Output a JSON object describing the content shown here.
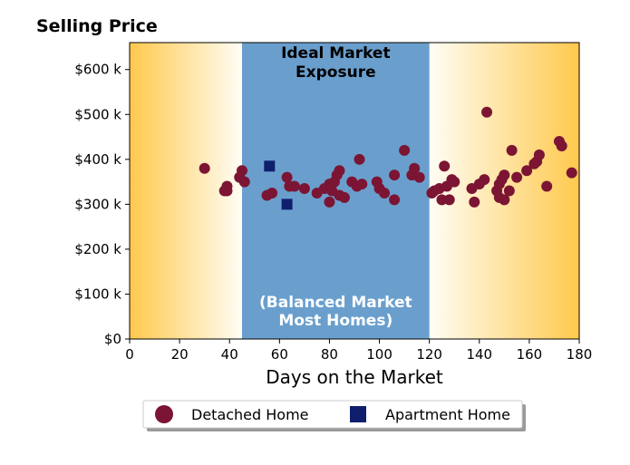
{
  "chart_data": {
    "type": "scatter",
    "title": "Selling Price",
    "xlabel": "Days on the Market",
    "ylabel": "",
    "xlim": [
      0,
      180
    ],
    "ylim": [
      0,
      660000
    ],
    "x_ticks": [
      0,
      20,
      40,
      60,
      80,
      100,
      120,
      140,
      160,
      180
    ],
    "x_tick_labels": [
      "0",
      "20",
      "40",
      "60",
      "80",
      "100",
      "120",
      "140",
      "160",
      "180"
    ],
    "y_ticks": [
      0,
      100000,
      200000,
      300000,
      400000,
      500000,
      600000
    ],
    "y_tick_labels": [
      "$0",
      "$100 k",
      "$200 k",
      "$300 k",
      "$400 k",
      "$500 k",
      "$600 k"
    ],
    "grid": false,
    "legend_position": "bottom-center",
    "background_gradient": {
      "edge_color": "#ffc94d",
      "center_color": "#fffdf5",
      "left_range": [
        0,
        45
      ],
      "right_range": [
        120,
        180
      ]
    },
    "zone": {
      "x_range": [
        45,
        120
      ],
      "color": "#6a9fcd",
      "title_line1": "Ideal Market",
      "title_line2": "Exposure",
      "subtitle_line1": "(Balanced Market",
      "subtitle_line2": "Most Homes)"
    },
    "series": [
      {
        "name": "Detached Home",
        "marker": "circle",
        "color": "#7b1533",
        "points": [
          [
            30,
            380000
          ],
          [
            38,
            330000
          ],
          [
            39,
            340000
          ],
          [
            39,
            330000
          ],
          [
            44,
            360000
          ],
          [
            45,
            375000
          ],
          [
            46,
            350000
          ],
          [
            55,
            320000
          ],
          [
            57,
            325000
          ],
          [
            63,
            360000
          ],
          [
            64,
            340000
          ],
          [
            66,
            340000
          ],
          [
            70,
            335000
          ],
          [
            75,
            325000
          ],
          [
            78,
            335000
          ],
          [
            80,
            345000
          ],
          [
            80,
            305000
          ],
          [
            81,
            330000
          ],
          [
            82,
            350000
          ],
          [
            83,
            365000
          ],
          [
            84,
            375000
          ],
          [
            84,
            320000
          ],
          [
            86,
            315000
          ],
          [
            89,
            350000
          ],
          [
            91,
            340000
          ],
          [
            92,
            400000
          ],
          [
            93,
            345000
          ],
          [
            99,
            350000
          ],
          [
            100,
            335000
          ],
          [
            102,
            325000
          ],
          [
            106,
            365000
          ],
          [
            106,
            310000
          ],
          [
            110,
            420000
          ],
          [
            113,
            365000
          ],
          [
            114,
            380000
          ],
          [
            116,
            360000
          ],
          [
            121,
            325000
          ],
          [
            122,
            330000
          ],
          [
            124,
            335000
          ],
          [
            125,
            310000
          ],
          [
            126,
            385000
          ],
          [
            127,
            340000
          ],
          [
            128,
            310000
          ],
          [
            129,
            355000
          ],
          [
            130,
            350000
          ],
          [
            137,
            335000
          ],
          [
            138,
            305000
          ],
          [
            140,
            345000
          ],
          [
            142,
            355000
          ],
          [
            143,
            505000
          ],
          [
            147,
            330000
          ],
          [
            148,
            345000
          ],
          [
            148,
            315000
          ],
          [
            149,
            355000
          ],
          [
            150,
            365000
          ],
          [
            150,
            310000
          ],
          [
            152,
            330000
          ],
          [
            153,
            420000
          ],
          [
            155,
            360000
          ],
          [
            159,
            375000
          ],
          [
            162,
            390000
          ],
          [
            163,
            395000
          ],
          [
            164,
            410000
          ],
          [
            167,
            340000
          ],
          [
            172,
            440000
          ],
          [
            173,
            430000
          ],
          [
            177,
            370000
          ]
        ]
      },
      {
        "name": "Apartment Home",
        "marker": "square",
        "color": "#0f1f6e",
        "points": [
          [
            56,
            385000
          ],
          [
            63,
            300000
          ]
        ]
      }
    ]
  }
}
